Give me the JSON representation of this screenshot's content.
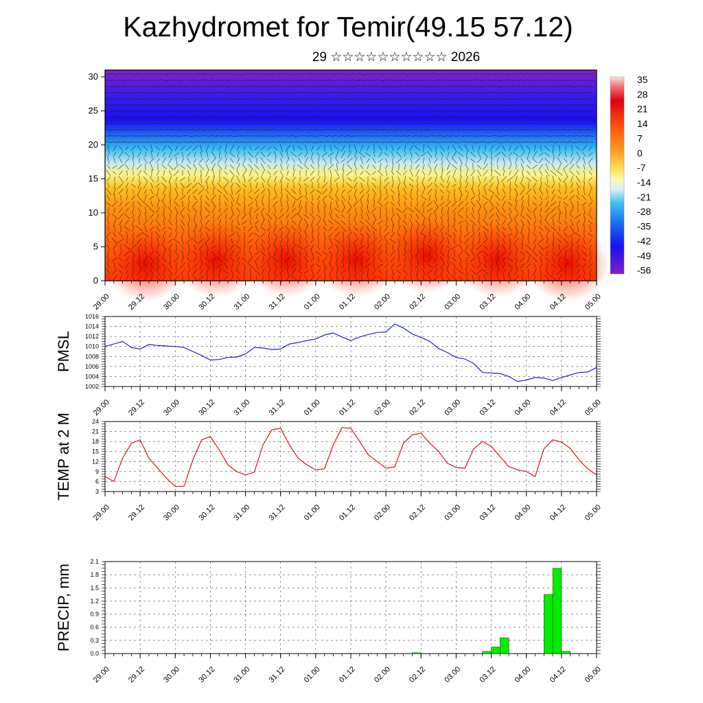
{
  "header": {
    "title": "Kazhydromet for Temir(49.15 57.12)",
    "subtitle": "29 ☆☆☆☆☆☆☆☆☆☆ 2026"
  },
  "colors": {
    "pmsl_line": "#1a1adf",
    "temp_line": "#e01010",
    "precip_bar": "#00ee00",
    "grid": "#555555"
  },
  "chart_data": [
    {
      "type": "heatmap",
      "name": "cross-section",
      "x_tick_labels": [
        "29.00",
        "29.12",
        "30.00",
        "30.12",
        "31.00",
        "31.12",
        "01.00",
        "01.12",
        "02.00",
        "02.12",
        "03.00",
        "03.12",
        "04.00",
        "04.12",
        "05.00"
      ],
      "y_ticks": [
        0,
        5,
        10,
        15,
        20,
        25,
        30
      ],
      "ylim": [
        0,
        31
      ],
      "colorbar_labels": [
        "35",
        "28",
        "21",
        "14",
        "7",
        "0",
        "-7",
        "-14",
        "-21",
        "-28",
        "-35",
        "-42",
        "-49",
        "-56"
      ],
      "overlay": "wind vectors",
      "grid": false
    },
    {
      "type": "line",
      "name": "pmsl",
      "ylabel": "PMSL",
      "ylim": [
        1002,
        1016
      ],
      "y_ticks": [
        1002,
        1004,
        1006,
        1008,
        1010,
        1012,
        1014,
        1016
      ],
      "x_tick_labels": [
        "29.00",
        "29.12",
        "30.00",
        "30.12",
        "31.00",
        "31.12",
        "01.00",
        "01.12",
        "02.00",
        "02.12",
        "03.00",
        "03.12",
        "04.00",
        "04.12",
        "05.00"
      ],
      "x": [
        0,
        3,
        6,
        9,
        12,
        15,
        18,
        21,
        24,
        27,
        30,
        33,
        36,
        39,
        42,
        45,
        48,
        51,
        54,
        57,
        60,
        63,
        66,
        69,
        72,
        75,
        78,
        81,
        84,
        87,
        90,
        93,
        96,
        99,
        102,
        105,
        108,
        111,
        114,
        117,
        120,
        123,
        126,
        129,
        132,
        135,
        138,
        141,
        144,
        147,
        150,
        153,
        156,
        159,
        162,
        165,
        168
      ],
      "values": [
        1010.0,
        1010.5,
        1011.0,
        1009.8,
        1009.5,
        1010.4,
        1010.2,
        1010.1,
        1010.0,
        1009.8,
        1009.0,
        1008.2,
        1007.3,
        1007.4,
        1007.8,
        1007.9,
        1008.5,
        1009.8,
        1009.7,
        1009.4,
        1009.5,
        1010.5,
        1010.8,
        1011.2,
        1011.5,
        1012.3,
        1012.7,
        1011.9,
        1011.2,
        1011.9,
        1012.4,
        1012.8,
        1012.9,
        1014.5,
        1013.7,
        1012.5,
        1011.8,
        1011.0,
        1009.6,
        1008.8,
        1007.8,
        1007.5,
        1006.6,
        1004.8,
        1004.7,
        1004.6,
        1004.0,
        1003.0,
        1003.3,
        1003.8,
        1003.7,
        1003.2,
        1003.8,
        1004.3,
        1004.8,
        1004.9,
        1005.8
      ],
      "grid": true
    },
    {
      "type": "line",
      "name": "temp",
      "ylabel": "TEMP at 2 M",
      "ylim": [
        3,
        24
      ],
      "y_ticks": [
        3,
        6,
        9,
        12,
        15,
        18,
        21,
        24
      ],
      "x_tick_labels": [
        "29.00",
        "29.12",
        "30.00",
        "30.12",
        "31.00",
        "31.12",
        "01.00",
        "01.12",
        "02.00",
        "02.12",
        "03.00",
        "03.12",
        "04.00",
        "04.12",
        "05.00"
      ],
      "x": [
        0,
        3,
        6,
        9,
        12,
        15,
        18,
        21,
        24,
        27,
        30,
        33,
        36,
        39,
        42,
        45,
        48,
        51,
        54,
        57,
        60,
        63,
        66,
        69,
        72,
        75,
        78,
        81,
        84,
        87,
        90,
        93,
        96,
        99,
        102,
        105,
        108,
        111,
        114,
        117,
        120,
        123,
        126,
        129,
        132,
        135,
        138,
        141,
        144,
        147,
        150,
        153,
        156,
        159,
        162,
        165,
        168
      ],
      "values": [
        7.5,
        6.0,
        13.0,
        17.5,
        18.5,
        13.0,
        10.0,
        7.0,
        4.5,
        4.6,
        12.5,
        18.5,
        19.5,
        15.5,
        11.0,
        9.0,
        8.0,
        8.8,
        17.0,
        21.5,
        22.0,
        17.0,
        13.0,
        11.0,
        9.5,
        9.8,
        17.0,
        22.2,
        22.0,
        18.0,
        14.0,
        12.0,
        10.0,
        10.4,
        17.5,
        20.0,
        20.5,
        17.5,
        15.0,
        11.5,
        10.2,
        10.0,
        15.8,
        18.0,
        16.5,
        13.5,
        10.5,
        9.5,
        9.0,
        7.5,
        15.8,
        18.5,
        17.8,
        16.0,
        12.5,
        9.8,
        8.0
      ],
      "grid": true
    },
    {
      "type": "bar",
      "name": "precip",
      "ylabel": "PRECIP, mm",
      "ylim": [
        0,
        2.1
      ],
      "y_ticks": [
        "0.0",
        "0.3",
        "0.6",
        "0.9",
        "1.2",
        "1.5",
        "1.8",
        "2.1"
      ],
      "x_tick_labels": [
        "29.00",
        "29.12",
        "30.00",
        "30.12",
        "31.00",
        "31.12",
        "01.00",
        "01.12",
        "02.00",
        "02.12",
        "03.00",
        "03.12",
        "04.00",
        "04.12",
        "05.00"
      ],
      "bar_width_hours": 3,
      "x": [
        105,
        129,
        132,
        135,
        150,
        153,
        156
      ],
      "values": [
        0.02,
        0.05,
        0.15,
        0.36,
        1.35,
        1.95,
        0.05
      ],
      "grid": true
    }
  ]
}
